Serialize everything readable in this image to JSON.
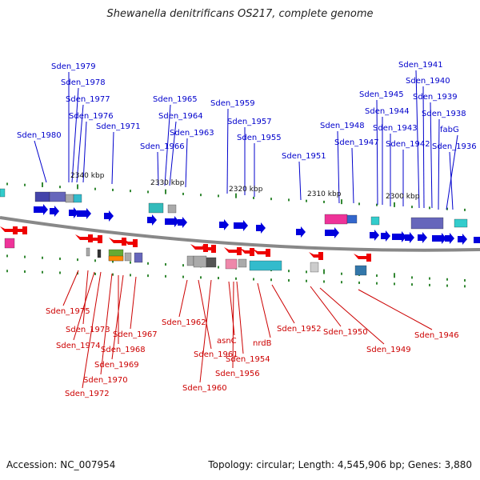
{
  "title": "Shewanella denitrificans OS217, complete genome",
  "footer": {
    "accession": "Accession: NC_007954",
    "info": "Topology: circular; Length: 4,545,906 bp; Genes: 3,880"
  },
  "colors": {
    "forward_label": "#0000cc",
    "reverse_label": "#cc0000",
    "backbone": "#888888",
    "tick": "#338833"
  },
  "kbp_labels": [
    "2340 kbp",
    "2330 kbp",
    "2320 kbp",
    "2310 kbp",
    "2300 kbp"
  ],
  "forward_genes": [
    "Sden_1980",
    "Sden_1979",
    "Sden_1978",
    "Sden_1977",
    "Sden_1976",
    "Sden_1971",
    "Sden_1966",
    "Sden_1965",
    "Sden_1964",
    "Sden_1963",
    "Sden_1959",
    "Sden_1957",
    "Sden_1955",
    "Sden_1951",
    "Sden_1948",
    "Sden_1947",
    "Sden_1945",
    "Sden_1944",
    "Sden_1943",
    "Sden_1942",
    "Sden_1941",
    "Sden_1940",
    "Sden_1939",
    "Sden_1938",
    "fabG",
    "Sden_1936"
  ],
  "reverse_genes": [
    "Sden_1975",
    "Sden_1973",
    "Sden_1974",
    "Sden_1970",
    "Sden_1972",
    "Sden_1968",
    "Sden_1969",
    "Sden_1967",
    "Sden_1962",
    "Sden_1961",
    "Sden_1960",
    "asnC",
    "Sden_1954",
    "Sden_1956",
    "nrdB",
    "Sden_1952",
    "Sden_1950",
    "Sden_1949",
    "Sden_1946"
  ]
}
